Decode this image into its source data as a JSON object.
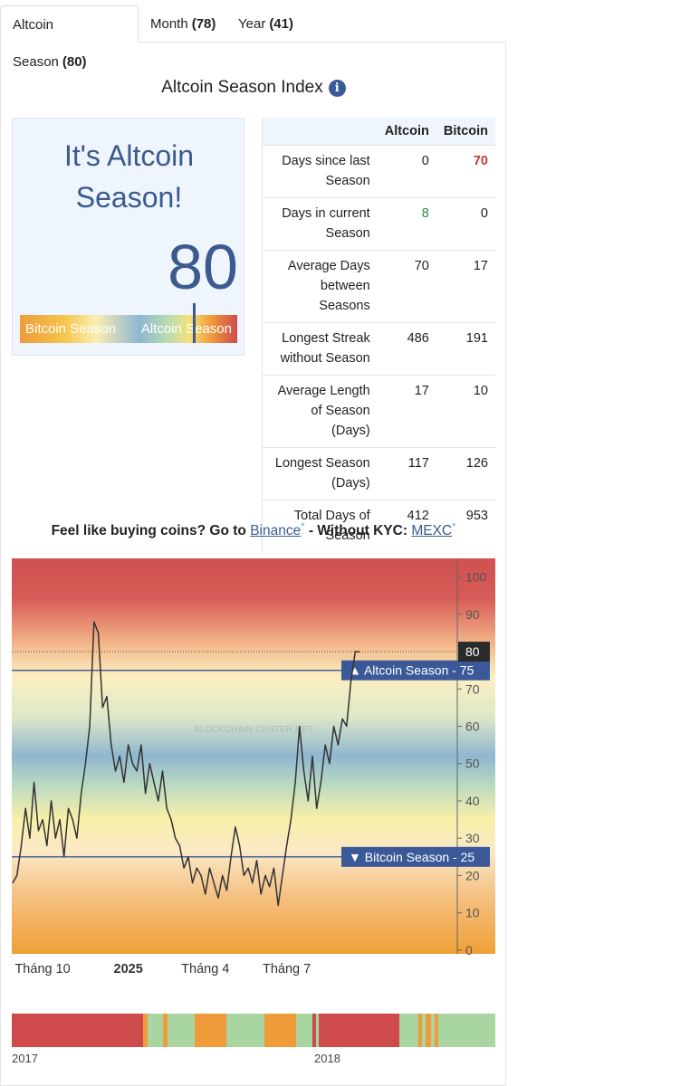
{
  "tabs": [
    {
      "name": "Altcoin Season",
      "count": "(80)"
    },
    {
      "name": "Month",
      "count": "(78)"
    },
    {
      "name": "Year",
      "count": "(41)"
    }
  ],
  "title": "Altcoin Season Index",
  "status": {
    "headline": "It's Altcoin Season!",
    "index": 80,
    "gauge_lim": [
      0,
      100
    ],
    "gauge_left": "Bitcoin Season",
    "gauge_right": "Altcoin Season"
  },
  "table": {
    "columns": [
      "Altcoin",
      "Bitcoin"
    ],
    "rows": [
      [
        "Days since last Season",
        0,
        70
      ],
      [
        "Days in current Season",
        8,
        0
      ],
      [
        "Average Days between Seasons",
        70,
        17
      ],
      [
        "Longest Streak without Season",
        486,
        191
      ],
      [
        "Average Length of Season (Days)",
        17,
        10
      ],
      [
        "Longest Season (Days)",
        117,
        126
      ],
      [
        "Total Days of Season",
        412,
        953
      ]
    ]
  },
  "promo": {
    "text": "Feel like buying coins? Go to",
    "link1": "Binance",
    "mid": "- Without KYC:",
    "link2": "MEXC",
    "asterisk": "*"
  },
  "chart_data": {
    "type": "line",
    "watermark": "BLOCKCHAIN CENTER.NET",
    "categories": [
      null,
      null,
      null,
      null,
      null,
      null,
      null,
      "Tháng 10",
      null,
      null,
      null,
      null,
      null,
      null,
      null,
      null,
      null,
      null,
      null,
      null,
      null,
      null,
      null,
      null,
      null,
      null,
      null,
      "2025",
      null,
      null,
      null,
      null,
      null,
      null,
      null,
      null,
      null,
      null,
      null,
      null,
      null,
      null,
      null,
      null,
      null,
      "Tháng 4",
      null,
      null,
      null,
      null,
      null,
      null,
      null,
      null,
      null,
      null,
      null,
      null,
      null,
      null,
      null,
      null,
      null,
      null,
      "Tháng 7",
      null,
      null,
      null,
      null,
      null,
      null,
      null,
      null,
      null,
      null,
      null,
      null,
      null,
      null,
      null,
      null,
      null
    ],
    "values": [
      18,
      20,
      28,
      38,
      30,
      45,
      32,
      35,
      28,
      40,
      30,
      35,
      25,
      38,
      35,
      30,
      42,
      50,
      60,
      88,
      85,
      65,
      68,
      55,
      48,
      52,
      45,
      55,
      50,
      48,
      55,
      42,
      50,
      45,
      40,
      48,
      38,
      35,
      30,
      28,
      22,
      25,
      18,
      22,
      20,
      15,
      22,
      18,
      14,
      20,
      16,
      25,
      33,
      28,
      20,
      22,
      18,
      24,
      15,
      20,
      17,
      22,
      12,
      20,
      28,
      35,
      45,
      60,
      48,
      40,
      52,
      38,
      45,
      55,
      50,
      60,
      55,
      62,
      60,
      72,
      80,
      80
    ],
    "color": "#333333",
    "ylim": [
      -1,
      105
    ],
    "yticks": [
      0,
      10,
      20,
      30,
      40,
      50,
      60,
      70,
      80,
      90,
      100
    ],
    "current_value": 80,
    "reference_lines": [
      {
        "value": 75,
        "label": "▲ Altcoin Season - 75"
      },
      {
        "value": 25,
        "label": "▼ Bitcoin Season - 25"
      }
    ]
  },
  "history": {
    "labels": [
      "2017",
      "2018"
    ]
  }
}
